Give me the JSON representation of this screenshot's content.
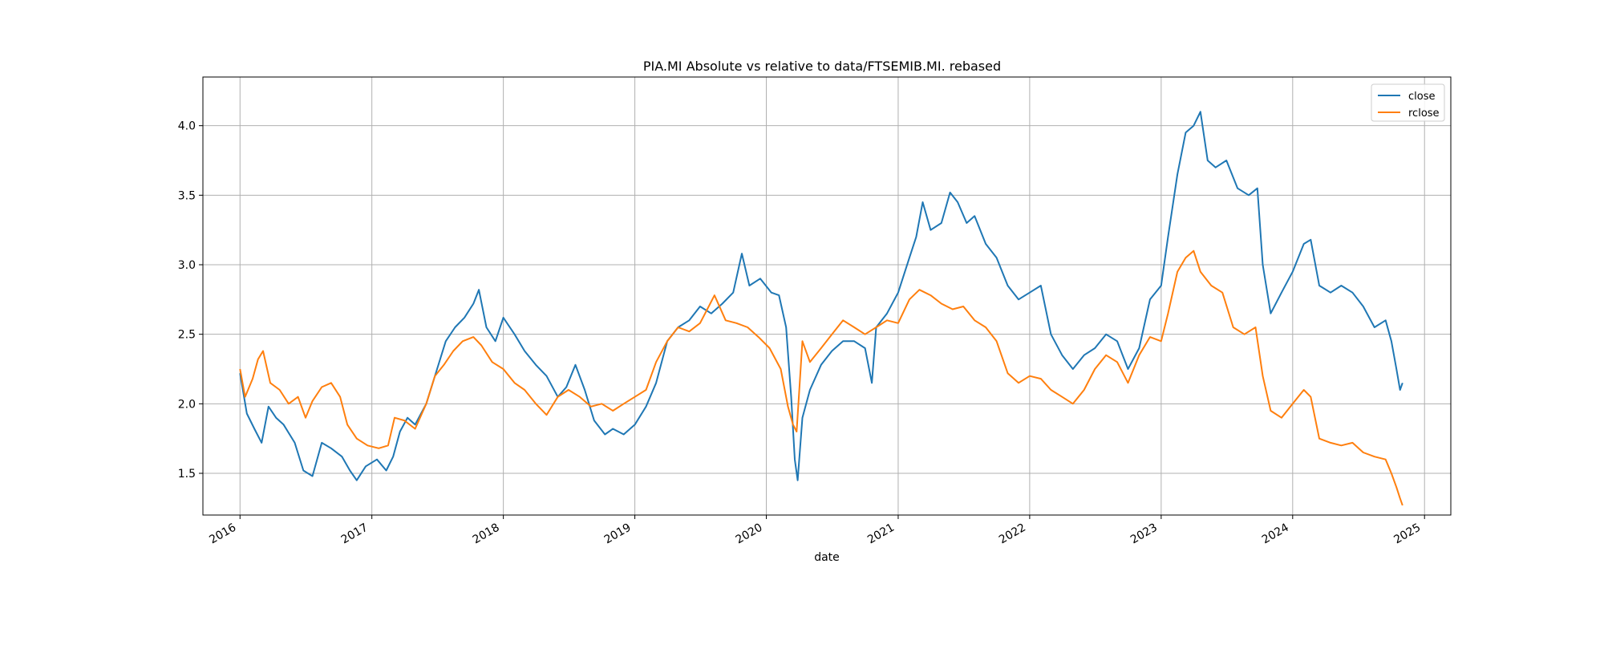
{
  "chart_data": {
    "type": "line",
    "title": "PIA.MI Absolute vs relative to data/FTSEMIB.MI. rebased",
    "xlabel": "date",
    "ylabel": "",
    "xlim": [
      "2015-09-20",
      "2025-03-15"
    ],
    "ylim": [
      1.2,
      4.35
    ],
    "x_ticks": [
      "2016-01-01",
      "2017-01-01",
      "2018-01-01",
      "2019-01-01",
      "2020-01-01",
      "2021-01-01",
      "2022-01-01",
      "2023-01-01",
      "2024-01-01",
      "2025-01-01"
    ],
    "x_tick_labels": [
      "2016",
      "2017",
      "2018",
      "2019",
      "2020",
      "2021",
      "2022",
      "2023",
      "2024",
      "2025"
    ],
    "y_ticks": [
      1.5,
      2.0,
      2.5,
      3.0,
      3.5,
      4.0
    ],
    "y_tick_labels": [
      "1.5",
      "2.0",
      "2.5",
      "3.0",
      "3.5",
      "4.0"
    ],
    "grid": true,
    "legend_position": "upper right",
    "series": [
      {
        "name": "close",
        "color": "#1f77b4",
        "points": [
          [
            "2016-01-01",
            2.22
          ],
          [
            "2016-01-20",
            1.93
          ],
          [
            "2016-02-10",
            1.82
          ],
          [
            "2016-03-01",
            1.72
          ],
          [
            "2016-03-20",
            1.98
          ],
          [
            "2016-04-10",
            1.9
          ],
          [
            "2016-05-01",
            1.85
          ],
          [
            "2016-06-01",
            1.72
          ],
          [
            "2016-06-25",
            1.52
          ],
          [
            "2016-07-20",
            1.48
          ],
          [
            "2016-08-15",
            1.72
          ],
          [
            "2016-09-10",
            1.68
          ],
          [
            "2016-10-10",
            1.62
          ],
          [
            "2016-11-01",
            1.52
          ],
          [
            "2016-11-20",
            1.45
          ],
          [
            "2016-12-15",
            1.55
          ],
          [
            "2017-01-15",
            1.6
          ],
          [
            "2017-02-10",
            1.52
          ],
          [
            "2017-03-01",
            1.62
          ],
          [
            "2017-03-20",
            1.8
          ],
          [
            "2017-04-10",
            1.9
          ],
          [
            "2017-05-01",
            1.85
          ],
          [
            "2017-06-01",
            2.0
          ],
          [
            "2017-07-01",
            2.25
          ],
          [
            "2017-07-25",
            2.45
          ],
          [
            "2017-08-20",
            2.55
          ],
          [
            "2017-09-15",
            2.62
          ],
          [
            "2017-10-10",
            2.72
          ],
          [
            "2017-10-25",
            2.82
          ],
          [
            "2017-11-15",
            2.55
          ],
          [
            "2017-12-10",
            2.45
          ],
          [
            "2018-01-01",
            2.62
          ],
          [
            "2018-02-01",
            2.5
          ],
          [
            "2018-03-01",
            2.38
          ],
          [
            "2018-04-01",
            2.28
          ],
          [
            "2018-05-01",
            2.2
          ],
          [
            "2018-06-01",
            2.05
          ],
          [
            "2018-06-25",
            2.12
          ],
          [
            "2018-07-20",
            2.28
          ],
          [
            "2018-08-15",
            2.1
          ],
          [
            "2018-09-10",
            1.88
          ],
          [
            "2018-10-10",
            1.78
          ],
          [
            "2018-11-01",
            1.82
          ],
          [
            "2018-12-01",
            1.78
          ],
          [
            "2019-01-01",
            1.85
          ],
          [
            "2019-02-01",
            1.98
          ],
          [
            "2019-03-01",
            2.15
          ],
          [
            "2019-04-01",
            2.45
          ],
          [
            "2019-05-01",
            2.55
          ],
          [
            "2019-06-01",
            2.6
          ],
          [
            "2019-07-01",
            2.7
          ],
          [
            "2019-08-01",
            2.65
          ],
          [
            "2019-09-01",
            2.72
          ],
          [
            "2019-10-01",
            2.8
          ],
          [
            "2019-10-25",
            3.08
          ],
          [
            "2019-11-15",
            2.85
          ],
          [
            "2019-12-15",
            2.9
          ],
          [
            "2020-01-15",
            2.8
          ],
          [
            "2020-02-05",
            2.78
          ],
          [
            "2020-02-25",
            2.55
          ],
          [
            "2020-03-10",
            2.05
          ],
          [
            "2020-03-20",
            1.6
          ],
          [
            "2020-03-28",
            1.45
          ],
          [
            "2020-04-10",
            1.9
          ],
          [
            "2020-05-01",
            2.1
          ],
          [
            "2020-06-01",
            2.28
          ],
          [
            "2020-07-01",
            2.38
          ],
          [
            "2020-08-01",
            2.45
          ],
          [
            "2020-09-01",
            2.45
          ],
          [
            "2020-10-01",
            2.4
          ],
          [
            "2020-10-20",
            2.15
          ],
          [
            "2020-11-01",
            2.55
          ],
          [
            "2020-12-01",
            2.65
          ],
          [
            "2021-01-01",
            2.8
          ],
          [
            "2021-02-01",
            3.05
          ],
          [
            "2021-02-20",
            3.2
          ],
          [
            "2021-03-10",
            3.45
          ],
          [
            "2021-04-01",
            3.25
          ],
          [
            "2021-05-01",
            3.3
          ],
          [
            "2021-05-25",
            3.52
          ],
          [
            "2021-06-15",
            3.45
          ],
          [
            "2021-07-10",
            3.3
          ],
          [
            "2021-08-01",
            3.35
          ],
          [
            "2021-09-01",
            3.15
          ],
          [
            "2021-10-01",
            3.05
          ],
          [
            "2021-11-01",
            2.85
          ],
          [
            "2021-12-01",
            2.75
          ],
          [
            "2022-01-01",
            2.8
          ],
          [
            "2022-02-01",
            2.85
          ],
          [
            "2022-03-01",
            2.5
          ],
          [
            "2022-04-01",
            2.35
          ],
          [
            "2022-05-01",
            2.25
          ],
          [
            "2022-06-01",
            2.35
          ],
          [
            "2022-07-01",
            2.4
          ],
          [
            "2022-08-01",
            2.5
          ],
          [
            "2022-09-01",
            2.45
          ],
          [
            "2022-10-01",
            2.25
          ],
          [
            "2022-11-01",
            2.4
          ],
          [
            "2022-12-01",
            2.75
          ],
          [
            "2023-01-01",
            2.85
          ],
          [
            "2023-01-20",
            3.2
          ],
          [
            "2023-02-15",
            3.65
          ],
          [
            "2023-03-10",
            3.95
          ],
          [
            "2023-04-01",
            4.0
          ],
          [
            "2023-04-20",
            4.1
          ],
          [
            "2023-05-10",
            3.75
          ],
          [
            "2023-06-01",
            3.7
          ],
          [
            "2023-07-01",
            3.75
          ],
          [
            "2023-08-01",
            3.55
          ],
          [
            "2023-09-01",
            3.5
          ],
          [
            "2023-09-25",
            3.55
          ],
          [
            "2023-10-10",
            3.0
          ],
          [
            "2023-11-01",
            2.65
          ],
          [
            "2023-12-01",
            2.8
          ],
          [
            "2024-01-01",
            2.95
          ],
          [
            "2024-02-01",
            3.15
          ],
          [
            "2024-02-20",
            3.18
          ],
          [
            "2024-03-15",
            2.85
          ],
          [
            "2024-04-15",
            2.8
          ],
          [
            "2024-05-15",
            2.85
          ],
          [
            "2024-06-15",
            2.8
          ],
          [
            "2024-07-15",
            2.7
          ],
          [
            "2024-08-15",
            2.55
          ],
          [
            "2024-09-15",
            2.6
          ],
          [
            "2024-10-01",
            2.45
          ],
          [
            "2024-10-15",
            2.25
          ],
          [
            "2024-10-25",
            2.1
          ],
          [
            "2024-11-01",
            2.15
          ]
        ]
      },
      {
        "name": "rclose",
        "color": "#ff7f0e",
        "points": [
          [
            "2016-01-01",
            2.25
          ],
          [
            "2016-01-15",
            2.05
          ],
          [
            "2016-02-05",
            2.18
          ],
          [
            "2016-02-20",
            2.32
          ],
          [
            "2016-03-05",
            2.38
          ],
          [
            "2016-03-25",
            2.15
          ],
          [
            "2016-04-20",
            2.1
          ],
          [
            "2016-05-15",
            2.0
          ],
          [
            "2016-06-10",
            2.05
          ],
          [
            "2016-07-01",
            1.9
          ],
          [
            "2016-07-20",
            2.02
          ],
          [
            "2016-08-15",
            2.12
          ],
          [
            "2016-09-10",
            2.15
          ],
          [
            "2016-10-05",
            2.05
          ],
          [
            "2016-10-25",
            1.85
          ],
          [
            "2016-11-20",
            1.75
          ],
          [
            "2016-12-20",
            1.7
          ],
          [
            "2017-01-20",
            1.68
          ],
          [
            "2017-02-15",
            1.7
          ],
          [
            "2017-03-05",
            1.9
          ],
          [
            "2017-04-01",
            1.88
          ],
          [
            "2017-05-01",
            1.82
          ],
          [
            "2017-06-01",
            2.0
          ],
          [
            "2017-06-25",
            2.2
          ],
          [
            "2017-07-20",
            2.28
          ],
          [
            "2017-08-15",
            2.38
          ],
          [
            "2017-09-10",
            2.45
          ],
          [
            "2017-10-10",
            2.48
          ],
          [
            "2017-11-01",
            2.42
          ],
          [
            "2017-12-01",
            2.3
          ],
          [
            "2018-01-01",
            2.25
          ],
          [
            "2018-02-01",
            2.15
          ],
          [
            "2018-03-01",
            2.1
          ],
          [
            "2018-04-01",
            2.0
          ],
          [
            "2018-05-01",
            1.92
          ],
          [
            "2018-06-01",
            2.05
          ],
          [
            "2018-07-01",
            2.1
          ],
          [
            "2018-08-01",
            2.05
          ],
          [
            "2018-09-01",
            1.98
          ],
          [
            "2018-10-01",
            2.0
          ],
          [
            "2018-11-01",
            1.95
          ],
          [
            "2018-12-01",
            2.0
          ],
          [
            "2019-01-01",
            2.05
          ],
          [
            "2019-02-01",
            2.1
          ],
          [
            "2019-03-01",
            2.3
          ],
          [
            "2019-04-01",
            2.45
          ],
          [
            "2019-05-01",
            2.55
          ],
          [
            "2019-06-01",
            2.52
          ],
          [
            "2019-07-01",
            2.58
          ],
          [
            "2019-08-10",
            2.78
          ],
          [
            "2019-09-10",
            2.6
          ],
          [
            "2019-10-10",
            2.58
          ],
          [
            "2019-11-10",
            2.55
          ],
          [
            "2019-12-10",
            2.48
          ],
          [
            "2020-01-10",
            2.4
          ],
          [
            "2020-02-10",
            2.25
          ],
          [
            "2020-03-01",
            1.98
          ],
          [
            "2020-03-15",
            1.85
          ],
          [
            "2020-03-25",
            1.8
          ],
          [
            "2020-04-10",
            2.45
          ],
          [
            "2020-05-01",
            2.3
          ],
          [
            "2020-06-01",
            2.4
          ],
          [
            "2020-07-01",
            2.5
          ],
          [
            "2020-08-01",
            2.6
          ],
          [
            "2020-09-01",
            2.55
          ],
          [
            "2020-10-01",
            2.5
          ],
          [
            "2020-11-01",
            2.55
          ],
          [
            "2020-12-01",
            2.6
          ],
          [
            "2021-01-01",
            2.58
          ],
          [
            "2021-02-01",
            2.75
          ],
          [
            "2021-03-01",
            2.82
          ],
          [
            "2021-04-01",
            2.78
          ],
          [
            "2021-05-01",
            2.72
          ],
          [
            "2021-06-01",
            2.68
          ],
          [
            "2021-07-01",
            2.7
          ],
          [
            "2021-08-01",
            2.6
          ],
          [
            "2021-09-01",
            2.55
          ],
          [
            "2021-10-01",
            2.45
          ],
          [
            "2021-11-01",
            2.22
          ],
          [
            "2021-12-01",
            2.15
          ],
          [
            "2022-01-01",
            2.2
          ],
          [
            "2022-02-01",
            2.18
          ],
          [
            "2022-03-01",
            2.1
          ],
          [
            "2022-04-01",
            2.05
          ],
          [
            "2022-05-01",
            2.0
          ],
          [
            "2022-06-01",
            2.1
          ],
          [
            "2022-07-01",
            2.25
          ],
          [
            "2022-08-01",
            2.35
          ],
          [
            "2022-09-01",
            2.3
          ],
          [
            "2022-10-01",
            2.15
          ],
          [
            "2022-11-01",
            2.35
          ],
          [
            "2022-12-01",
            2.48
          ],
          [
            "2023-01-01",
            2.45
          ],
          [
            "2023-01-20",
            2.65
          ],
          [
            "2023-02-15",
            2.95
          ],
          [
            "2023-03-10",
            3.05
          ],
          [
            "2023-04-01",
            3.1
          ],
          [
            "2023-04-20",
            2.95
          ],
          [
            "2023-05-20",
            2.85
          ],
          [
            "2023-06-20",
            2.8
          ],
          [
            "2023-07-20",
            2.55
          ],
          [
            "2023-08-20",
            2.5
          ],
          [
            "2023-09-20",
            2.55
          ],
          [
            "2023-10-10",
            2.2
          ],
          [
            "2023-11-01",
            1.95
          ],
          [
            "2023-12-01",
            1.9
          ],
          [
            "2024-01-01",
            2.0
          ],
          [
            "2024-02-01",
            2.1
          ],
          [
            "2024-02-20",
            2.05
          ],
          [
            "2024-03-15",
            1.75
          ],
          [
            "2024-04-15",
            1.72
          ],
          [
            "2024-05-15",
            1.7
          ],
          [
            "2024-06-15",
            1.72
          ],
          [
            "2024-07-15",
            1.65
          ],
          [
            "2024-08-15",
            1.62
          ],
          [
            "2024-09-15",
            1.6
          ],
          [
            "2024-10-01",
            1.5
          ],
          [
            "2024-10-15",
            1.4
          ],
          [
            "2024-10-25",
            1.32
          ],
          [
            "2024-11-01",
            1.27
          ]
        ]
      }
    ]
  }
}
